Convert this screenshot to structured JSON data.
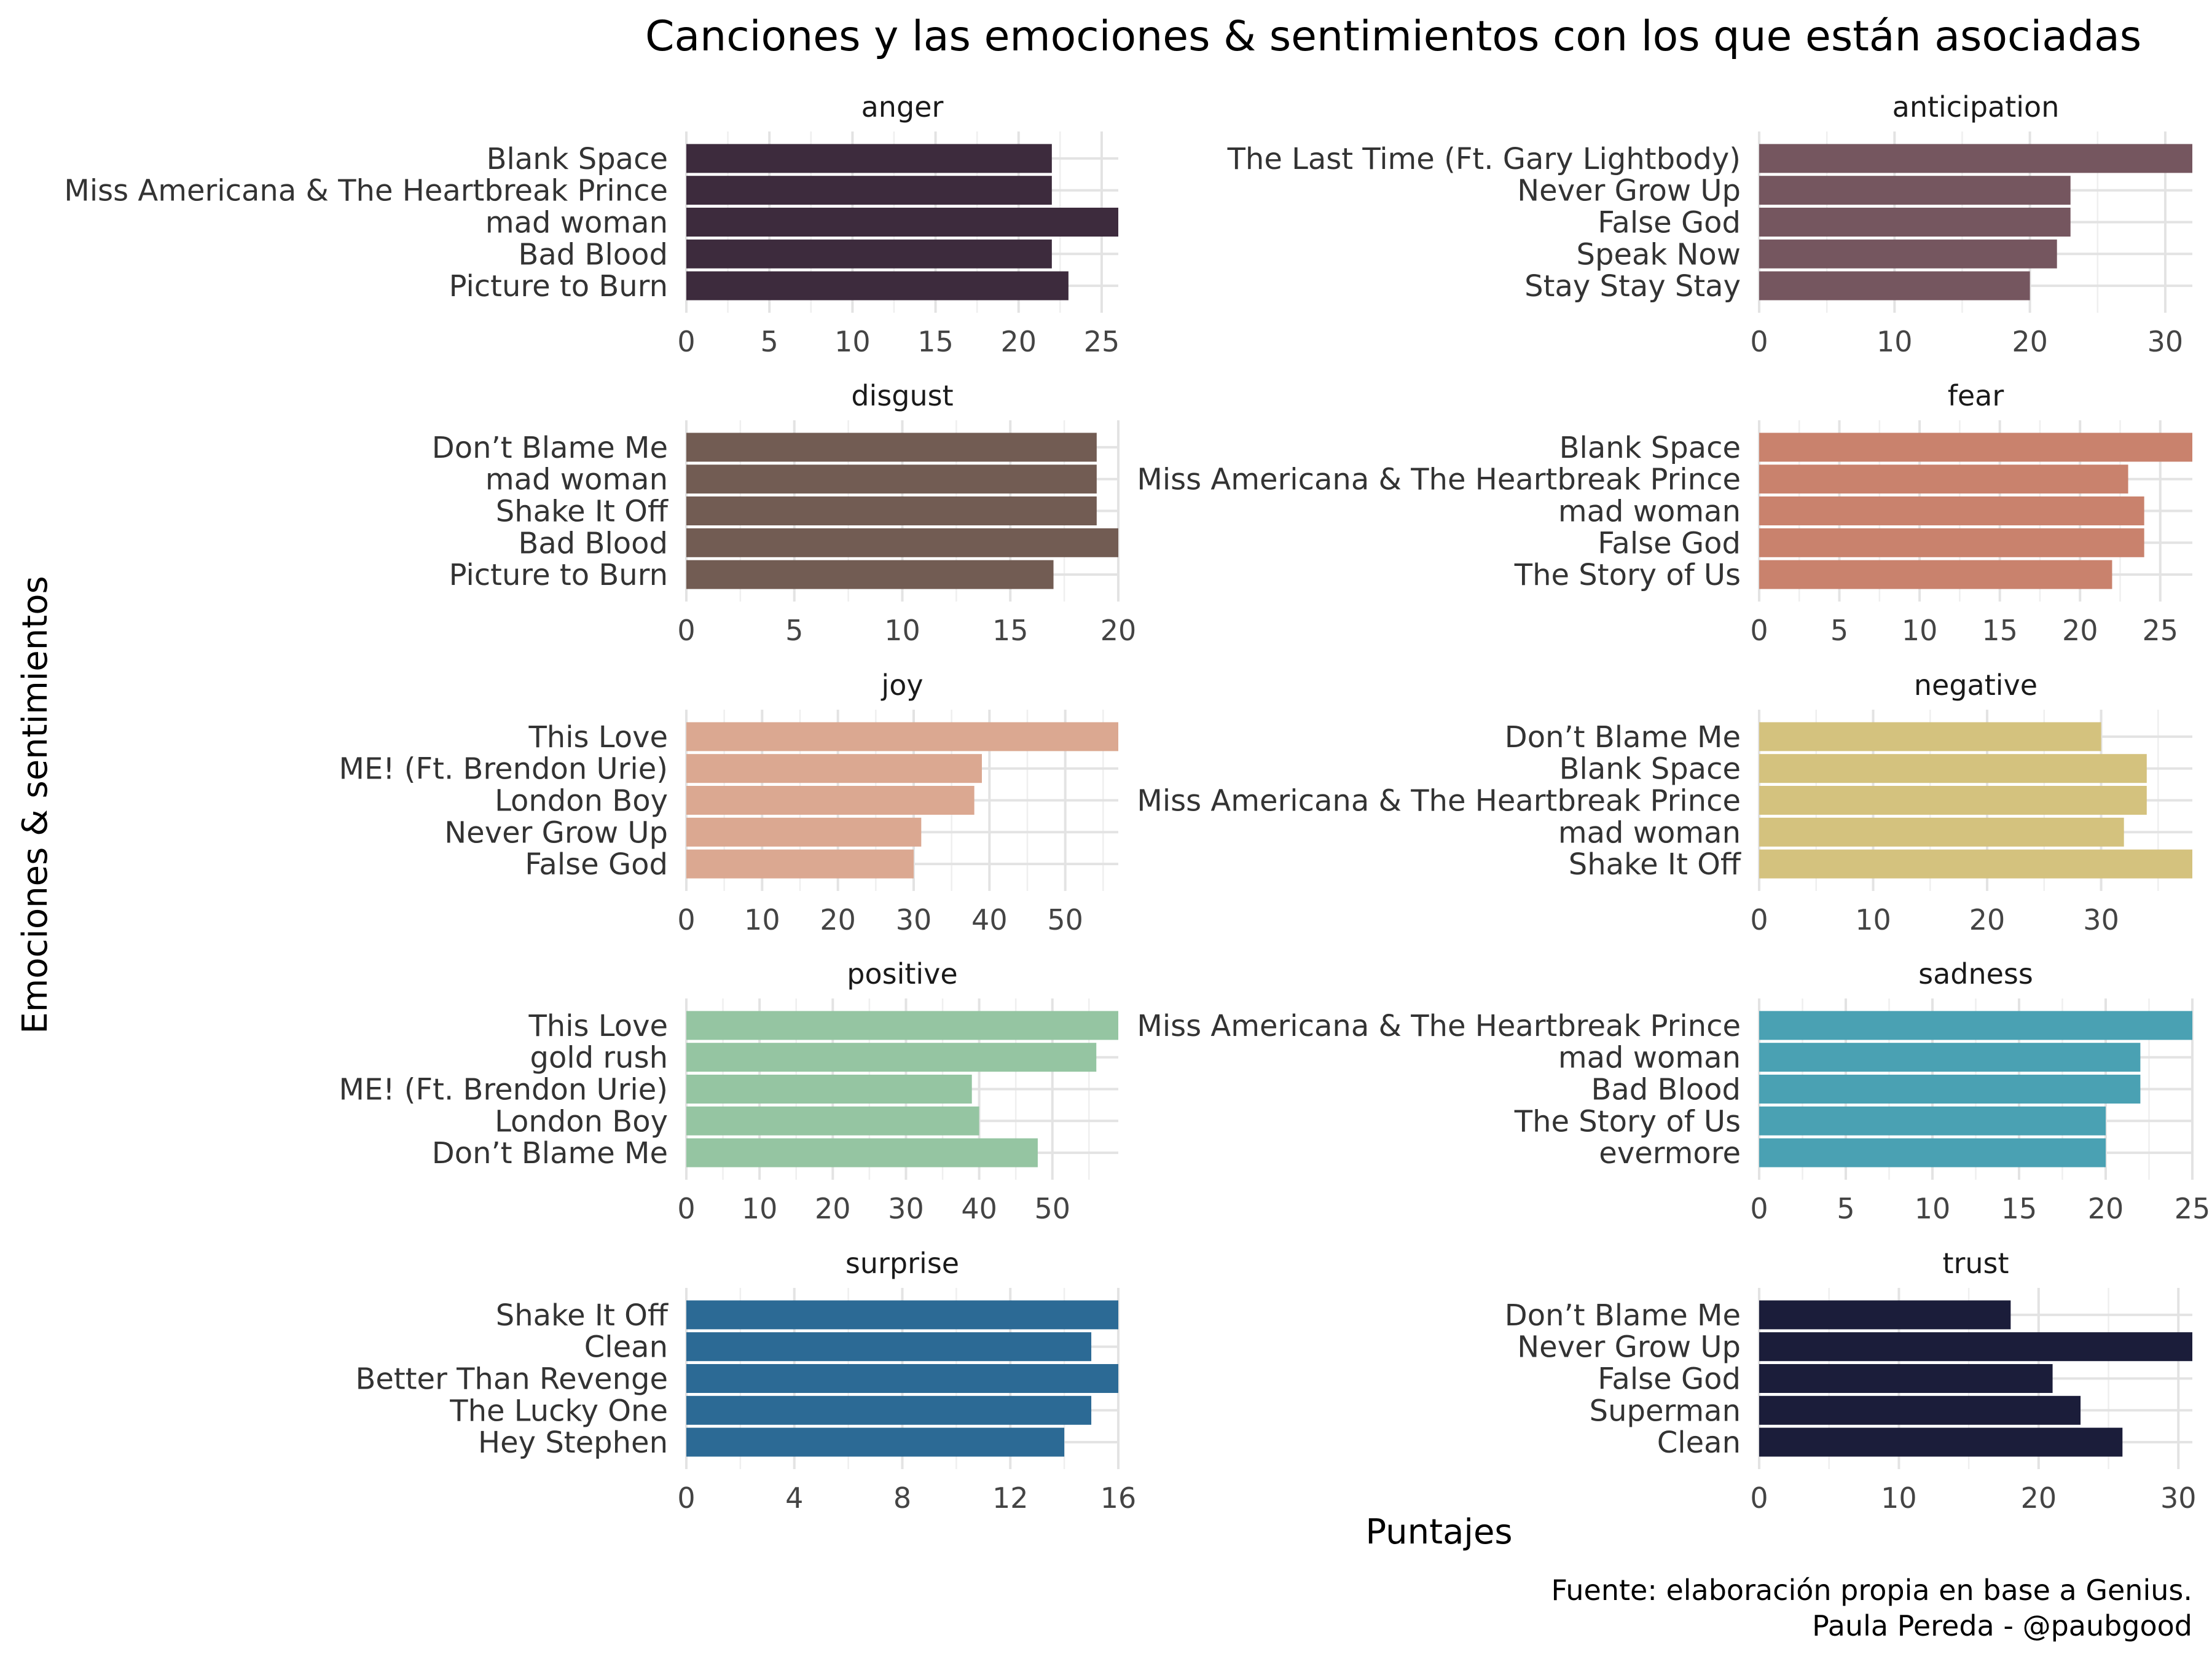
{
  "chart_data": {
    "type": "bar",
    "orientation": "horizontal",
    "title": "Canciones y las emociones & sentimientos con los que están asociadas",
    "xlabel": "Puntajes",
    "ylabel": "Emociones & sentimientos",
    "caption": [
      "Fuente: elaboración propia en base a Genius.",
      "Paula Pereda - @paubgood"
    ],
    "grid": true,
    "legend": "none",
    "facets": [
      {
        "name": "anger",
        "color": "#3d2b3d",
        "categories": [
          "Blank Space",
          "Miss Americana & The Heartbreak Prince",
          "mad woman",
          "Bad Blood",
          "Picture to Burn"
        ],
        "values": [
          22,
          22,
          26,
          22,
          23
        ],
        "xlim": [
          0,
          26
        ],
        "ticks": [
          0,
          5,
          10,
          15,
          20,
          25
        ]
      },
      {
        "name": "anticipation",
        "color": "#75565f",
        "categories": [
          "The Last Time (Ft. Gary Lightbody)",
          "Never Grow Up",
          "False God",
          "Speak Now",
          "Stay Stay Stay"
        ],
        "values": [
          32,
          23,
          23,
          22,
          20
        ],
        "xlim": [
          0,
          32
        ],
        "ticks": [
          0,
          10,
          20,
          30
        ]
      },
      {
        "name": "disgust",
        "color": "#725c53",
        "categories": [
          "Don’t Blame Me",
          "mad woman",
          "Shake It Off",
          "Bad Blood",
          "Picture to Burn"
        ],
        "values": [
          19,
          19,
          19,
          20,
          17
        ],
        "xlim": [
          0,
          20
        ],
        "ticks": [
          0,
          5,
          10,
          15,
          20
        ]
      },
      {
        "name": "fear",
        "color": "#c9826d",
        "categories": [
          "Blank Space",
          "Miss Americana & The Heartbreak Prince",
          "mad woman",
          "False God",
          "The Story of Us"
        ],
        "values": [
          27,
          23,
          24,
          24,
          22
        ],
        "xlim": [
          0,
          27
        ],
        "ticks": [
          0,
          5,
          10,
          15,
          20,
          25
        ]
      },
      {
        "name": "joy",
        "color": "#dba891",
        "categories": [
          "This Love",
          "ME! (Ft. Brendon Urie)",
          "London Boy",
          "Never Grow Up",
          "False God"
        ],
        "values": [
          57,
          39,
          38,
          31,
          30
        ],
        "xlim": [
          0,
          57
        ],
        "ticks": [
          0,
          10,
          20,
          30,
          40,
          50
        ]
      },
      {
        "name": "negative",
        "color": "#d4c27e",
        "categories": [
          "Don’t Blame Me",
          "Blank Space",
          "Miss Americana & The Heartbreak Prince",
          "mad woman",
          "Shake It Off"
        ],
        "values": [
          30,
          34,
          34,
          32,
          38
        ],
        "xlim": [
          0,
          38
        ],
        "ticks": [
          0,
          10,
          20,
          30
        ]
      },
      {
        "name": "positive",
        "color": "#95c5a2",
        "categories": [
          "This Love",
          "gold rush",
          "ME! (Ft. Brendon Urie)",
          "London Boy",
          "Don’t Blame Me"
        ],
        "values": [
          59,
          56,
          39,
          40,
          48
        ],
        "xlim": [
          0,
          59
        ],
        "ticks": [
          0,
          10,
          20,
          30,
          40,
          50
        ]
      },
      {
        "name": "sadness",
        "color": "#4aa1b3",
        "categories": [
          "Miss Americana & The Heartbreak Prince",
          "mad woman",
          "Bad Blood",
          "The Story of Us",
          "evermore"
        ],
        "values": [
          25,
          22,
          22,
          20,
          20
        ],
        "xlim": [
          0,
          25
        ],
        "ticks": [
          0,
          5,
          10,
          15,
          20,
          25
        ]
      },
      {
        "name": "surprise",
        "color": "#2c6a95",
        "categories": [
          "Shake It Off",
          "Clean",
          "Better Than Revenge",
          "The Lucky One",
          "Hey Stephen"
        ],
        "values": [
          16,
          15,
          16,
          15,
          14
        ],
        "xlim": [
          0,
          16
        ],
        "ticks": [
          0,
          4,
          8,
          12,
          16
        ]
      },
      {
        "name": "trust",
        "color": "#1b1d3a",
        "categories": [
          "Don’t Blame Me",
          "Never Grow Up",
          "False God",
          "Superman",
          "Clean"
        ],
        "values": [
          18,
          31,
          21,
          23,
          26
        ],
        "xlim": [
          0,
          31
        ],
        "ticks": [
          0,
          10,
          20,
          30
        ]
      }
    ]
  }
}
